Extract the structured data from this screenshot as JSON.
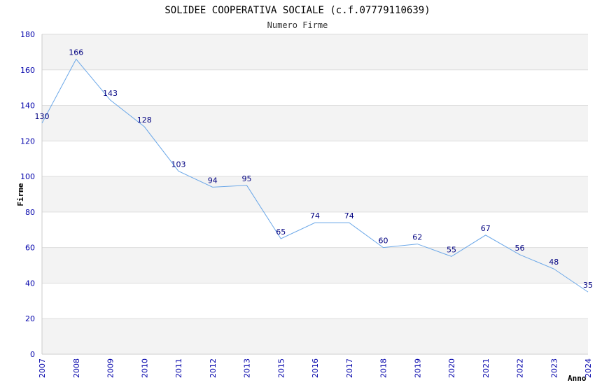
{
  "chart_data": {
    "type": "line",
    "title": "SOLIDEE COOPERATIVA SOCIALE (c.f.07779110639)",
    "subtitle": "Numero Firme",
    "xlabel": "Anno",
    "ylabel": "Firme",
    "categories": [
      "2007",
      "2008",
      "2009",
      "2010",
      "2011",
      "2012",
      "2013",
      "2015",
      "2016",
      "2017",
      "2018",
      "2019",
      "2020",
      "2021",
      "2022",
      "2023",
      "2024"
    ],
    "values": [
      130,
      166,
      143,
      128,
      103,
      94,
      95,
      65,
      74,
      74,
      60,
      62,
      55,
      67,
      56,
      48,
      35
    ],
    "ylim": [
      0,
      180
    ],
    "yticks": [
      0,
      20,
      40,
      60,
      80,
      100,
      120,
      140,
      160,
      180
    ],
    "grid": true,
    "colors": {
      "line": "#6aa7e8",
      "band": "#f3f3f3",
      "grid": "#dddddd",
      "tick_text": "#0000aa",
      "label_text": "#000080"
    }
  }
}
